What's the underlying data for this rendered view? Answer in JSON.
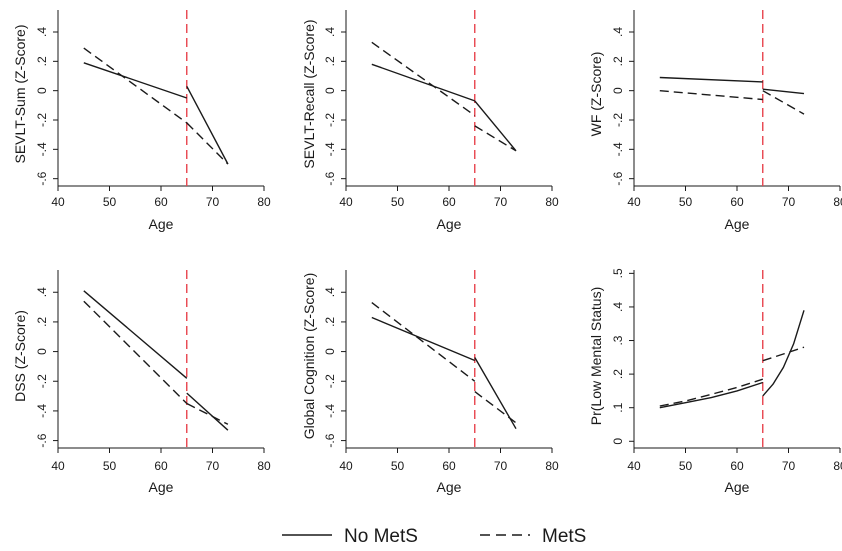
{
  "colors": {
    "line": "#1a1a1a",
    "axis": "#1a1a1a",
    "ref_line": "#e8434d"
  },
  "legend": {
    "items": [
      {
        "label": "No MetS",
        "dash": "solid"
      },
      {
        "label": "MetS",
        "dash": "dashed"
      }
    ]
  },
  "chart_data": [
    {
      "type": "line",
      "xlabel": "Age",
      "ylabel": "SEVLT-Sum (Z-Score)",
      "xlim": [
        40,
        80
      ],
      "xticks": [
        40,
        50,
        60,
        70,
        80
      ],
      "xtick_labels": [
        "40",
        "50",
        "60",
        "70",
        "80"
      ],
      "ylim": [
        -0.65,
        0.55
      ],
      "yticks": [
        -0.6,
        -0.4,
        -0.2,
        0,
        0.2,
        0.4
      ],
      "ytick_labels": [
        "-.6",
        "-.4",
        "-.2",
        "0",
        ".2",
        ".4"
      ],
      "ref_x": 65,
      "series": [
        {
          "name": "No MetS",
          "dash": "solid",
          "segments": [
            [
              [
                45,
                0.19
              ],
              [
                65,
                -0.05
              ]
            ],
            [
              [
                65,
                0.03
              ],
              [
                73,
                -0.5
              ]
            ]
          ]
        },
        {
          "name": "MetS",
          "dash": "dashed",
          "segments": [
            [
              [
                45,
                0.29
              ],
              [
                65,
                -0.22
              ]
            ],
            [
              [
                65,
                -0.22
              ],
              [
                73,
                -0.5
              ]
            ]
          ]
        }
      ]
    },
    {
      "type": "line",
      "xlabel": "Age",
      "ylabel": "SEVLT-Recall (Z-Score)",
      "xlim": [
        40,
        80
      ],
      "xticks": [
        40,
        50,
        60,
        70,
        80
      ],
      "xtick_labels": [
        "40",
        "50",
        "60",
        "70",
        "80"
      ],
      "ylim": [
        -0.65,
        0.55
      ],
      "yticks": [
        -0.6,
        -0.4,
        -0.2,
        0,
        0.2,
        0.4
      ],
      "ytick_labels": [
        "-.6",
        "-.4",
        "-.2",
        "0",
        ".2",
        ".4"
      ],
      "ref_x": 65,
      "series": [
        {
          "name": "No MetS",
          "dash": "solid",
          "segments": [
            [
              [
                45,
                0.18
              ],
              [
                65,
                -0.07
              ]
            ],
            [
              [
                65,
                -0.07
              ],
              [
                73,
                -0.41
              ]
            ]
          ]
        },
        {
          "name": "MetS",
          "dash": "dashed",
          "segments": [
            [
              [
                45,
                0.33
              ],
              [
                65,
                -0.17
              ]
            ],
            [
              [
                65,
                -0.24
              ],
              [
                73,
                -0.41
              ]
            ]
          ]
        }
      ]
    },
    {
      "type": "line",
      "xlabel": "Age",
      "ylabel": "WF (Z-Score)",
      "xlim": [
        40,
        80
      ],
      "xticks": [
        40,
        50,
        60,
        70,
        80
      ],
      "xtick_labels": [
        "40",
        "50",
        "60",
        "70",
        "80"
      ],
      "ylim": [
        -0.65,
        0.55
      ],
      "yticks": [
        -0.6,
        -0.4,
        -0.2,
        0,
        0.2,
        0.4
      ],
      "ytick_labels": [
        "-.6",
        "-.4",
        "-.2",
        "0",
        ".2",
        ".4"
      ],
      "ref_x": 65,
      "series": [
        {
          "name": "No MetS",
          "dash": "solid",
          "segments": [
            [
              [
                45,
                0.09
              ],
              [
                65,
                0.06
              ]
            ],
            [
              [
                65,
                0.01
              ],
              [
                73,
                -0.02
              ]
            ]
          ]
        },
        {
          "name": "MetS",
          "dash": "dashed",
          "segments": [
            [
              [
                45,
                0.0
              ],
              [
                65,
                -0.06
              ]
            ],
            [
              [
                65,
                0.0
              ],
              [
                73,
                -0.16
              ]
            ]
          ]
        }
      ]
    },
    {
      "type": "line",
      "xlabel": "Age",
      "ylabel": "DSS (Z-Score)",
      "xlim": [
        40,
        80
      ],
      "xticks": [
        40,
        50,
        60,
        70,
        80
      ],
      "xtick_labels": [
        "40",
        "50",
        "60",
        "70",
        "80"
      ],
      "ylim": [
        -0.65,
        0.55
      ],
      "yticks": [
        -0.6,
        -0.4,
        -0.2,
        0,
        0.2,
        0.4
      ],
      "ytick_labels": [
        "-.6",
        "-.4",
        "-.2",
        "0",
        ".2",
        ".4"
      ],
      "ref_x": 65,
      "series": [
        {
          "name": "No MetS",
          "dash": "solid",
          "segments": [
            [
              [
                45,
                0.41
              ],
              [
                65,
                -0.18
              ]
            ],
            [
              [
                65,
                -0.28
              ],
              [
                73,
                -0.53
              ]
            ]
          ]
        },
        {
          "name": "MetS",
          "dash": "dashed",
          "segments": [
            [
              [
                45,
                0.34
              ],
              [
                65,
                -0.35
              ]
            ],
            [
              [
                65,
                -0.35
              ],
              [
                73,
                -0.49
              ]
            ]
          ]
        }
      ]
    },
    {
      "type": "line",
      "xlabel": "Age",
      "ylabel": "Global Cognition (Z-Score)",
      "xlim": [
        40,
        80
      ],
      "xticks": [
        40,
        50,
        60,
        70,
        80
      ],
      "xtick_labels": [
        "40",
        "50",
        "60",
        "70",
        "80"
      ],
      "ylim": [
        -0.65,
        0.55
      ],
      "yticks": [
        -0.6,
        -0.4,
        -0.2,
        0,
        0.2,
        0.4
      ],
      "ytick_labels": [
        "-.6",
        "-.4",
        "-.2",
        "0",
        ".2",
        ".4"
      ],
      "ref_x": 65,
      "series": [
        {
          "name": "No MetS",
          "dash": "solid",
          "segments": [
            [
              [
                45,
                0.23
              ],
              [
                65,
                -0.06
              ]
            ],
            [
              [
                65,
                -0.04
              ],
              [
                73,
                -0.52
              ]
            ]
          ]
        },
        {
          "name": "MetS",
          "dash": "dashed",
          "segments": [
            [
              [
                45,
                0.33
              ],
              [
                65,
                -0.2
              ]
            ],
            [
              [
                65,
                -0.27
              ],
              [
                73,
                -0.48
              ]
            ]
          ]
        }
      ]
    },
    {
      "type": "line",
      "xlabel": "Age",
      "ylabel": "Pr(Low Mental Status)",
      "xlim": [
        40,
        80
      ],
      "xticks": [
        40,
        50,
        60,
        70,
        80
      ],
      "xtick_labels": [
        "40",
        "50",
        "60",
        "70",
        "80"
      ],
      "ylim": [
        -0.02,
        0.51
      ],
      "yticks": [
        0,
        0.1,
        0.2,
        0.3,
        0.4,
        0.5
      ],
      "ytick_labels": [
        "0",
        ".1",
        ".2",
        ".3",
        ".4",
        ".5"
      ],
      "ref_x": 65,
      "series": [
        {
          "name": "No MetS",
          "dash": "solid",
          "segments": [
            [
              [
                45,
                0.1
              ],
              [
                50,
                0.115
              ],
              [
                55,
                0.13
              ],
              [
                60,
                0.15
              ],
              [
                65,
                0.175
              ]
            ],
            [
              [
                65,
                0.135
              ],
              [
                67,
                0.17
              ],
              [
                69,
                0.22
              ],
              [
                71,
                0.29
              ],
              [
                73,
                0.39
              ]
            ]
          ]
        },
        {
          "name": "MetS",
          "dash": "dashed",
          "segments": [
            [
              [
                45,
                0.105
              ],
              [
                50,
                0.12
              ],
              [
                55,
                0.14
              ],
              [
                60,
                0.16
              ],
              [
                65,
                0.185
              ]
            ],
            [
              [
                65,
                0.24
              ],
              [
                69,
                0.26
              ],
              [
                73,
                0.28
              ]
            ]
          ]
        }
      ]
    }
  ]
}
